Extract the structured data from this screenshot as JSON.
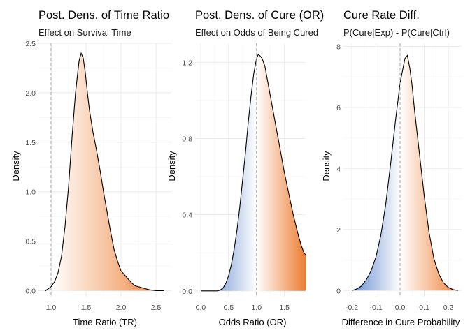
{
  "chart_data": [
    {
      "type": "area",
      "title": "Post. Dens. of Time Ratio",
      "subtitle": "Effect on Survival Time",
      "xlabel": "Time Ratio (TR)",
      "ylabel": "Density",
      "xlim": [
        0.82,
        2.72
      ],
      "ylim": [
        -0.06,
        2.5
      ],
      "xticks": [
        1.0,
        1.5,
        2.0,
        2.5
      ],
      "xtick_labels": [
        "1.0",
        "1.5",
        "2.0",
        "2.5"
      ],
      "yticks": [
        0.0,
        0.5,
        1.0,
        1.5,
        2.0,
        2.5
      ],
      "ytick_labels": [
        "0.0",
        "0.5",
        "1.0",
        "1.5",
        "2.0",
        "2.5"
      ],
      "reference_line": 1.0,
      "grid": true,
      "fill_low_color": "#4472c4",
      "fill_high_color": "#ed7d31",
      "x": [
        0.92,
        1.0,
        1.05,
        1.1,
        1.15,
        1.2,
        1.25,
        1.3,
        1.35,
        1.4,
        1.43,
        1.46,
        1.49,
        1.52,
        1.55,
        1.6,
        1.65,
        1.7,
        1.75,
        1.8,
        1.85,
        1.9,
        1.95,
        2.0,
        2.05,
        2.1,
        2.15,
        2.2,
        2.3,
        2.4,
        2.5,
        2.62
      ],
      "y": [
        0.0,
        0.04,
        0.09,
        0.18,
        0.35,
        0.65,
        1.05,
        1.55,
        2.0,
        2.32,
        2.4,
        2.35,
        2.2,
        2.0,
        1.82,
        1.6,
        1.42,
        1.22,
        1.0,
        0.8,
        0.6,
        0.42,
        0.3,
        0.2,
        0.16,
        0.12,
        0.08,
        0.05,
        0.03,
        0.01,
        0.0,
        0.0
      ]
    },
    {
      "type": "area",
      "title": "Post. Dens. of Cure (OR)",
      "subtitle": "Effect on Odds of Being Cured",
      "xlabel": "Odds Ratio (OR)",
      "ylabel": "Density",
      "xlim": [
        -0.1,
        1.88
      ],
      "ylim": [
        -0.03,
        1.3
      ],
      "xticks": [
        0.0,
        0.5,
        1.0,
        1.5
      ],
      "xtick_labels": [
        "0.0",
        "0.5",
        "1.0",
        "1.5"
      ],
      "yticks": [
        0.0,
        0.4,
        0.8,
        1.2
      ],
      "ytick_labels": [
        "0.0",
        "0.4",
        "0.8",
        "1.2"
      ],
      "reference_line": 1.0,
      "grid": true,
      "fill_low_color": "#4472c4",
      "fill_high_color": "#ed7d31",
      "x": [
        0.0,
        0.1,
        0.2,
        0.3,
        0.35,
        0.4,
        0.45,
        0.5,
        0.55,
        0.6,
        0.65,
        0.7,
        0.75,
        0.8,
        0.85,
        0.9,
        0.95,
        1.0,
        1.03,
        1.06,
        1.1,
        1.15,
        1.2,
        1.25,
        1.3,
        1.35,
        1.4,
        1.45,
        1.5,
        1.55,
        1.6,
        1.65,
        1.7,
        1.75,
        1.8,
        1.85,
        1.88
      ],
      "y": [
        0.0,
        0.0,
        0.0,
        0.0,
        0.005,
        0.015,
        0.04,
        0.08,
        0.14,
        0.22,
        0.32,
        0.44,
        0.58,
        0.72,
        0.88,
        1.02,
        1.14,
        1.22,
        1.24,
        1.235,
        1.22,
        1.18,
        1.1,
        1.02,
        0.94,
        0.86,
        0.78,
        0.7,
        0.62,
        0.55,
        0.48,
        0.41,
        0.35,
        0.29,
        0.24,
        0.2,
        0.19
      ]
    },
    {
      "type": "area",
      "title": "Cure Rate Diff.",
      "subtitle": "P(Cure|Exp) - P(Cure|Ctrl)",
      "xlabel": "Difference in Cure Probability",
      "ylabel": "Density",
      "xlim": [
        -0.235,
        0.255
      ],
      "ylim": [
        -0.2,
        8.1
      ],
      "xticks": [
        -0.2,
        -0.1,
        0.0,
        0.1,
        0.2
      ],
      "xtick_labels": [
        "-0.2",
        "-0.1",
        "0.0",
        "0.1",
        "0.2"
      ],
      "yticks": [
        0,
        2,
        4,
        6,
        8
      ],
      "ytick_labels": [
        "0",
        "2",
        "4",
        "6",
        "8"
      ],
      "reference_line": 0.0,
      "grid": true,
      "fill_low_color": "#4472c4",
      "fill_high_color": "#ed7d31",
      "x": [
        -0.2,
        -0.18,
        -0.16,
        -0.14,
        -0.12,
        -0.1,
        -0.08,
        -0.06,
        -0.04,
        -0.02,
        0.0,
        0.01,
        0.02,
        0.03,
        0.04,
        0.05,
        0.06,
        0.08,
        0.1,
        0.12,
        0.14,
        0.16,
        0.18,
        0.2,
        0.22,
        0.24
      ],
      "y": [
        0.0,
        0.05,
        0.15,
        0.35,
        0.65,
        1.1,
        1.8,
        2.8,
        4.1,
        5.5,
        6.8,
        7.2,
        7.6,
        7.7,
        7.3,
        6.7,
        5.9,
        4.5,
        3.1,
        1.9,
        1.05,
        0.55,
        0.25,
        0.1,
        0.03,
        0.0
      ]
    }
  ]
}
